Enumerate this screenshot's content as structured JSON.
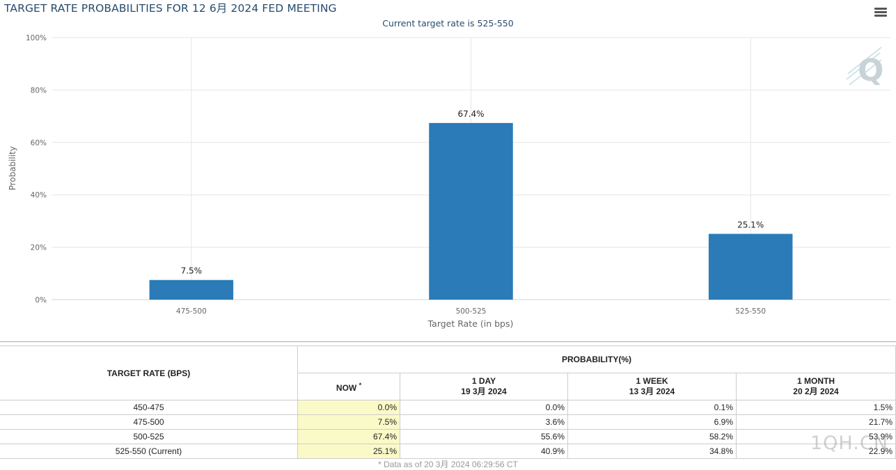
{
  "title": "TARGET RATE PROBABILITIES FOR 12 6月 2024 FED MEETING",
  "subtitle": "Current target rate is 525-550",
  "watermark": "1QH.CN",
  "chart_data": {
    "type": "bar",
    "categories": [
      "475-500",
      "500-525",
      "525-550"
    ],
    "values": [
      7.5,
      67.4,
      25.1
    ],
    "data_labels": [
      "7.5%",
      "67.4%",
      "25.1%"
    ],
    "xlabel": "Target Rate (in bps)",
    "ylabel": "Probability",
    "ylim": [
      0,
      100
    ],
    "yticks": [
      "0%",
      "20%",
      "40%",
      "60%",
      "80%",
      "100%"
    ],
    "grid": true,
    "bar_color": "#2b7bb9"
  },
  "table": {
    "header_target": "TARGET RATE (BPS)",
    "header_prob": "PROBABILITY(%)",
    "now_label": "NOW",
    "now_marker": "*",
    "col_day": "1 DAY",
    "col_day_date": "19 3月 2024",
    "col_week": "1 WEEK",
    "col_week_date": "13 3月 2024",
    "col_month": "1 MONTH",
    "col_month_date": "20 2月 2024",
    "rows": [
      {
        "rate": "450-475",
        "now": "0.0%",
        "day": "0.0%",
        "week": "0.1%",
        "month": "1.5%"
      },
      {
        "rate": "475-500",
        "now": "7.5%",
        "day": "3.6%",
        "week": "6.9%",
        "month": "21.7%"
      },
      {
        "rate": "500-525",
        "now": "67.4%",
        "day": "55.6%",
        "week": "58.2%",
        "month": "53.9%"
      },
      {
        "rate": "525-550 (Current)",
        "now": "25.1%",
        "day": "40.9%",
        "week": "34.8%",
        "month": "22.9%"
      }
    ]
  },
  "footnote": "* Data as of 20 3月 2024 06:29:56 CT"
}
